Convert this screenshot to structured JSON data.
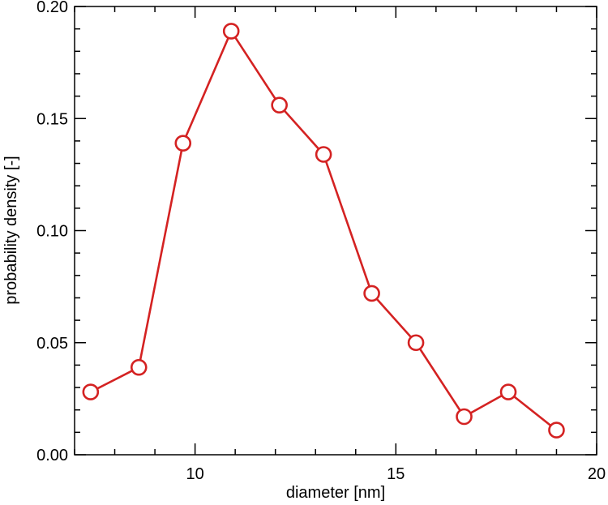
{
  "chart_data": {
    "type": "line",
    "title": "",
    "xlabel": "diameter  [nm]",
    "ylabel": "probability density  [-]",
    "xlim": [
      7,
      20
    ],
    "ylim": [
      0,
      0.2
    ],
    "x_ticks": [
      10,
      15,
      20
    ],
    "x_tick_labels": [
      "10",
      "15",
      "20"
    ],
    "y_ticks": [
      0,
      0.05,
      0.1,
      0.15,
      0.2
    ],
    "y_tick_labels": [
      "0.00",
      "0.05",
      "0.10",
      "0.15",
      "0.20"
    ],
    "grid": false,
    "series": [
      {
        "color": "#d42222",
        "marker": "open-circle",
        "x": [
          7.4,
          8.6,
          9.7,
          10.9,
          12.1,
          13.2,
          14.4,
          15.5,
          16.7,
          17.8,
          19.0
        ],
        "y": [
          0.028,
          0.039,
          0.139,
          0.189,
          0.156,
          0.134,
          0.072,
          0.05,
          0.017,
          0.028,
          0.011
        ]
      }
    ]
  }
}
